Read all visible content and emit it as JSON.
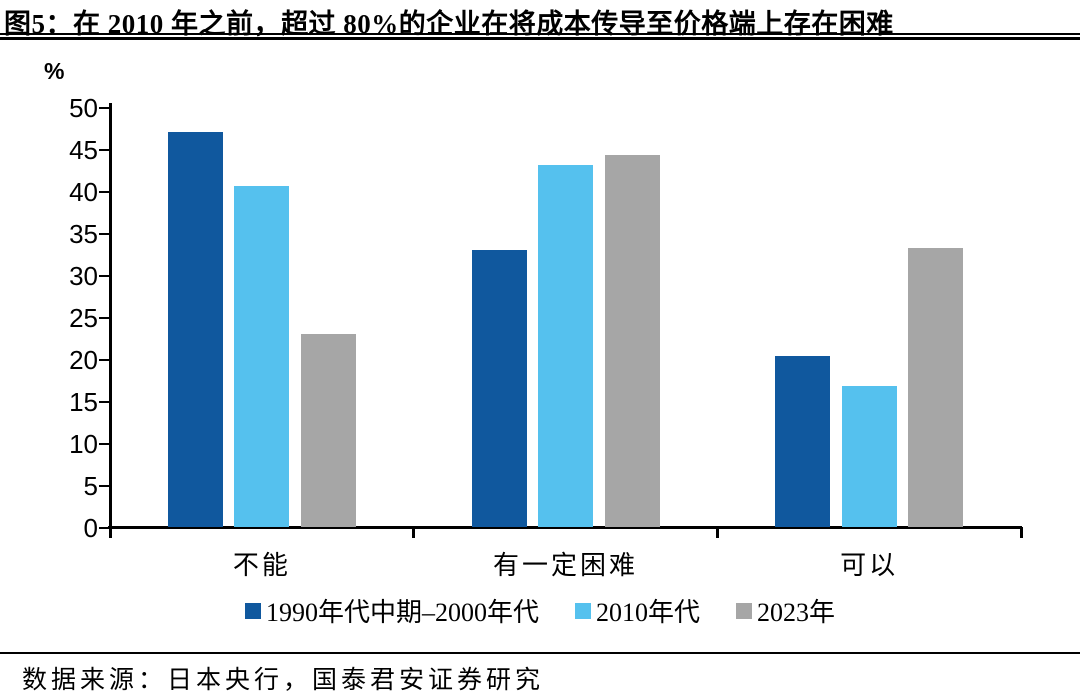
{
  "figure": {
    "title": "图5：在 2010 年之前，超过 80%的企业在将成本传导至价格端上存在困难",
    "source_note": "数据来源：日本央行，国泰君安证券研究"
  },
  "colors": {
    "series_1990s": "#10589E",
    "series_2010s": "#55C1EE",
    "series_2023": "#A6A6A6",
    "axis": "#000000",
    "background": "#FFFFFF"
  },
  "chart_data": {
    "type": "bar",
    "title": "",
    "categories": [
      "不能",
      "有一定困难",
      "可以"
    ],
    "series": [
      {
        "name": "1990年代中期–2000年代",
        "color": "#10589E",
        "values": [
          47.0,
          33.0,
          20.3
        ]
      },
      {
        "name": "2010年代",
        "color": "#55C1EE",
        "values": [
          40.6,
          43.1,
          16.8
        ]
      },
      {
        "name": "2023年",
        "color": "#A6A6A6",
        "values": [
          23.0,
          44.3,
          33.2
        ]
      }
    ],
    "xlabel": "",
    "ylabel": "%",
    "ylim": [
      0,
      50
    ],
    "yticks": [
      0,
      5,
      10,
      15,
      20,
      25,
      30,
      35,
      40,
      45,
      50
    ],
    "grid": false,
    "legend_position": "bottom"
  }
}
